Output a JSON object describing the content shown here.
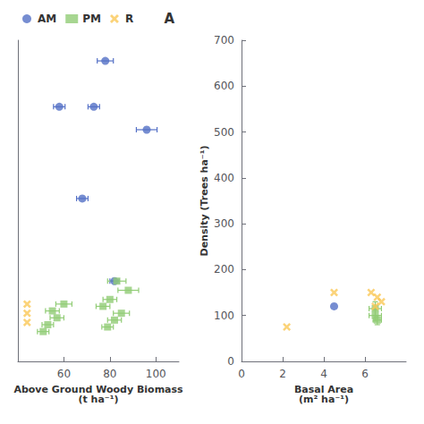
{
  "chart_data": [
    {
      "type": "scatter",
      "title": "A",
      "xlabel": "Above Ground Woody Biomass\n(t ha⁻¹)",
      "xlim": [
        40,
        110
      ],
      "xticks": [
        60,
        80,
        100
      ],
      "ylim": [
        0,
        7
      ],
      "tick_labels": "x",
      "grid": false,
      "legend": "upper left",
      "series": [
        {
          "name": "AM",
          "marker": "circle",
          "x": [
            78,
            58,
            73,
            96,
            68,
            82
          ],
          "values": [
            6.55,
            5.55,
            5.55,
            5.05,
            3.55,
            1.75
          ],
          "xerr": [
            3.5,
            2.5,
            2.5,
            4.5,
            2.5,
            2.0
          ]
        },
        {
          "name": "PM",
          "marker": "square",
          "x": [
            83,
            88,
            80,
            77,
            85,
            82,
            79,
            60,
            55,
            57,
            53,
            51
          ],
          "values": [
            1.75,
            1.55,
            1.35,
            1.2,
            1.05,
            0.9,
            0.75,
            1.25,
            1.1,
            0.95,
            0.8,
            0.65
          ],
          "xerr": [
            4.0,
            4.5,
            3.0,
            3.0,
            3.5,
            3.0,
            2.5,
            3.5,
            3.0,
            3.0,
            2.5,
            2.5
          ]
        },
        {
          "name": "R",
          "marker": "x",
          "x": [
            44,
            44,
            44
          ],
          "values": [
            1.25,
            1.05,
            0.85
          ]
        }
      ]
    },
    {
      "type": "scatter",
      "xlabel": "Basal Area\n(m² ha⁻¹)",
      "ylabel": "Density (Trees ha⁻¹)",
      "xlim": [
        0,
        8
      ],
      "xticks": [
        0,
        2,
        4,
        6
      ],
      "ylim": [
        0,
        700
      ],
      "yticks": [
        0,
        100,
        200,
        300,
        400,
        500,
        600,
        700
      ],
      "grid": false,
      "series": [
        {
          "marker": "circle",
          "x": [
            4.5
          ],
          "values": [
            120
          ]
        },
        {
          "marker": "square",
          "x": [
            6.5,
            6.5,
            6.6
          ],
          "values": [
            115,
            100,
            90
          ],
          "xerr": [
            0.3,
            0.3,
            0.2
          ],
          "yerr": [
            15,
            12,
            10
          ]
        },
        {
          "marker": "x",
          "x": [
            2.2,
            4.5,
            6.3,
            6.6,
            6.8,
            6.5
          ],
          "values": [
            75,
            150,
            150,
            140,
            130,
            120
          ]
        }
      ]
    }
  ]
}
